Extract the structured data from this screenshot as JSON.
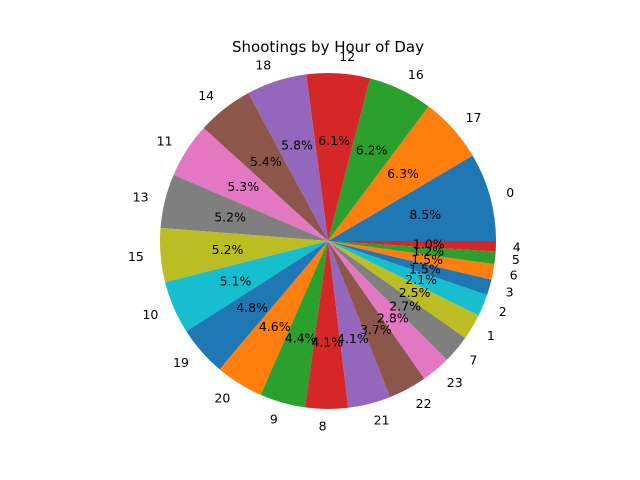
{
  "chart_data": {
    "type": "pie",
    "title": "Shootings by Hour of Day",
    "categories": [
      "0",
      "17",
      "16",
      "12",
      "18",
      "14",
      "11",
      "13",
      "15",
      "10",
      "19",
      "20",
      "9",
      "8",
      "21",
      "22",
      "23",
      "7",
      "1",
      "2",
      "3",
      "6",
      "5",
      "4"
    ],
    "values": [
      8.5,
      6.3,
      6.2,
      6.1,
      5.8,
      5.4,
      5.3,
      5.2,
      5.2,
      5.1,
      4.8,
      4.6,
      4.4,
      4.1,
      4.1,
      3.7,
      2.8,
      2.7,
      2.5,
      2.1,
      1.5,
      1.5,
      1.2,
      1.0
    ],
    "labels": [
      "8.5%",
      "6.3%",
      "6.2%",
      "6.1%",
      "5.8%",
      "5.4%",
      "5.3%",
      "5.2%",
      "5.2%",
      "5.1%",
      "4.8%",
      "4.6%",
      "4.4%",
      "4.1%",
      "4.1%",
      "3.7%",
      "2.8%",
      "2.7%",
      "2.5%",
      "2.1%",
      "1.5%",
      "1.5%",
      "1.2%",
      "1.0%"
    ],
    "colors": [
      "#1f77b4",
      "#ff7f0e",
      "#2ca02c",
      "#d62728",
      "#9467bd",
      "#8c564b",
      "#e377c2",
      "#7f7f7f",
      "#bcbd22",
      "#17becf"
    ],
    "start_angle": 0,
    "direction": "counterclockwise",
    "legend": "none"
  }
}
